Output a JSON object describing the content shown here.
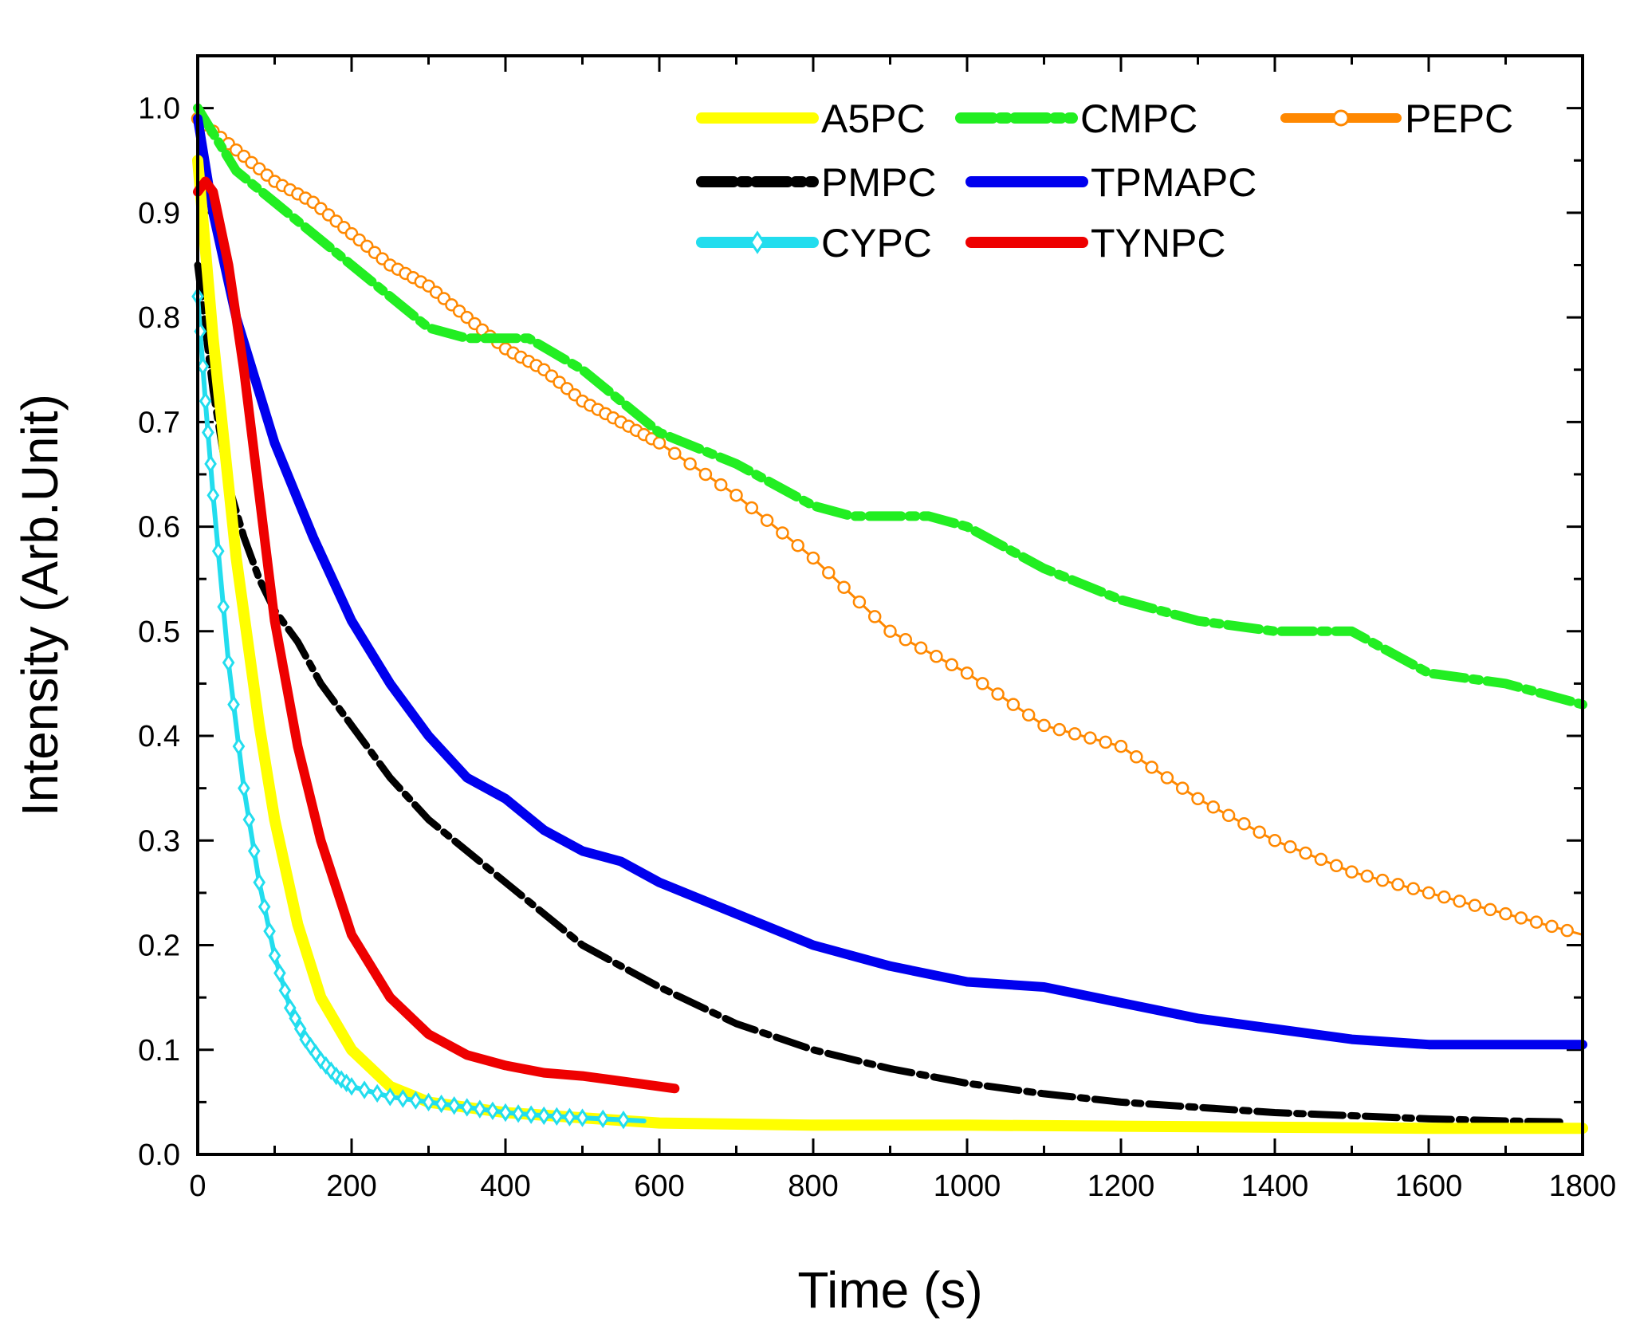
{
  "chart_data": {
    "type": "line",
    "title": "",
    "xlabel": "Time (s)",
    "ylabel": "Intensity (Arb.Unit)",
    "xlim": [
      0,
      1800
    ],
    "ylim": [
      0,
      1.05
    ],
    "xticks": [
      0,
      200,
      400,
      600,
      800,
      1000,
      1200,
      1400,
      1600,
      1800
    ],
    "xtick_labels": [
      "0",
      "200",
      "400",
      "600",
      "800",
      "1000",
      "1200",
      "1400",
      "1600",
      "1800"
    ],
    "yticks": [
      0.0,
      0.1,
      0.2,
      0.3,
      0.4,
      0.5,
      0.6,
      0.7,
      0.8,
      0.9,
      1.0
    ],
    "ytick_labels": [
      "0.0",
      "0.1",
      "0.2",
      "0.3",
      "0.4",
      "0.5",
      "0.6",
      "0.7",
      "0.8",
      "0.9",
      "1.0"
    ],
    "legend_position": "top-right",
    "series": [
      {
        "name": "A5PC",
        "color": "#ffff00",
        "style": "solid",
        "x": [
          0,
          20,
          50,
          80,
          100,
          130,
          160,
          200,
          250,
          300,
          400,
          500,
          600,
          800,
          1000,
          1200,
          1400,
          1600,
          1800
        ],
        "y": [
          0.95,
          0.78,
          0.57,
          0.41,
          0.32,
          0.22,
          0.15,
          0.1,
          0.065,
          0.05,
          0.04,
          0.035,
          0.03,
          0.028,
          0.028,
          0.027,
          0.026,
          0.025,
          0.025
        ]
      },
      {
        "name": "CMPC",
        "color": "#22ee22",
        "style": "dashdot",
        "x": [
          0,
          50,
          100,
          200,
          300,
          350,
          400,
          430,
          500,
          550,
          600,
          700,
          800,
          850,
          900,
          950,
          1000,
          1100,
          1200,
          1300,
          1400,
          1500,
          1600,
          1700,
          1800
        ],
        "y": [
          1.0,
          0.94,
          0.91,
          0.85,
          0.79,
          0.78,
          0.78,
          0.78,
          0.75,
          0.72,
          0.69,
          0.66,
          0.62,
          0.61,
          0.61,
          0.61,
          0.6,
          0.56,
          0.53,
          0.51,
          0.5,
          0.5,
          0.46,
          0.45,
          0.43
        ]
      },
      {
        "name": "PEPC",
        "color": "#ff8800",
        "style": "circles",
        "x": [
          0,
          50,
          100,
          150,
          200,
          250,
          300,
          350,
          400,
          450,
          500,
          550,
          600,
          700,
          800,
          900,
          1000,
          1100,
          1200,
          1300,
          1400,
          1500,
          1600,
          1700,
          1800
        ],
        "y": [
          0.99,
          0.96,
          0.93,
          0.91,
          0.88,
          0.85,
          0.83,
          0.8,
          0.77,
          0.75,
          0.72,
          0.7,
          0.68,
          0.63,
          0.57,
          0.5,
          0.46,
          0.41,
          0.39,
          0.34,
          0.3,
          0.27,
          0.25,
          0.23,
          0.21
        ]
      },
      {
        "name": "PMPC",
        "color": "#000000",
        "style": "dashdot",
        "x": [
          0,
          20,
          40,
          60,
          80,
          100,
          130,
          160,
          200,
          250,
          300,
          400,
          500,
          600,
          700,
          800,
          900,
          1000,
          1100,
          1200,
          1300,
          1400,
          1500,
          1600,
          1700,
          1780
        ],
        "y": [
          0.85,
          0.73,
          0.64,
          0.59,
          0.55,
          0.52,
          0.49,
          0.45,
          0.41,
          0.36,
          0.32,
          0.26,
          0.2,
          0.16,
          0.125,
          0.1,
          0.082,
          0.068,
          0.058,
          0.05,
          0.045,
          0.04,
          0.037,
          0.034,
          0.032,
          0.031
        ]
      },
      {
        "name": "TPMAPC",
        "color": "#0000ee",
        "style": "solid",
        "x": [
          0,
          20,
          50,
          100,
          150,
          200,
          250,
          300,
          350,
          400,
          450,
          500,
          550,
          600,
          700,
          800,
          900,
          1000,
          1100,
          1200,
          1300,
          1400,
          1500,
          1600,
          1700,
          1800
        ],
        "y": [
          0.99,
          0.9,
          0.8,
          0.68,
          0.59,
          0.51,
          0.45,
          0.4,
          0.36,
          0.34,
          0.31,
          0.29,
          0.28,
          0.26,
          0.23,
          0.2,
          0.18,
          0.165,
          0.16,
          0.145,
          0.13,
          0.12,
          0.11,
          0.105,
          0.105,
          0.105
        ]
      },
      {
        "name": "CYPC",
        "color": "#22ddee",
        "style": "diamonds",
        "x": [
          0,
          10,
          20,
          40,
          60,
          80,
          100,
          120,
          140,
          160,
          180,
          200,
          250,
          300,
          350,
          400,
          450,
          500,
          580
        ],
        "y": [
          0.82,
          0.72,
          0.63,
          0.47,
          0.35,
          0.26,
          0.19,
          0.14,
          0.11,
          0.09,
          0.075,
          0.065,
          0.055,
          0.05,
          0.045,
          0.04,
          0.037,
          0.035,
          0.032
        ]
      },
      {
        "name": "TYNPC",
        "color": "#ee0000",
        "style": "solid",
        "x": [
          0,
          10,
          20,
          40,
          60,
          80,
          100,
          130,
          160,
          200,
          250,
          300,
          350,
          400,
          450,
          500,
          550,
          620
        ],
        "y": [
          0.92,
          0.93,
          0.92,
          0.85,
          0.75,
          0.63,
          0.51,
          0.39,
          0.3,
          0.21,
          0.15,
          0.115,
          0.095,
          0.085,
          0.078,
          0.075,
          0.07,
          0.063
        ]
      }
    ]
  }
}
